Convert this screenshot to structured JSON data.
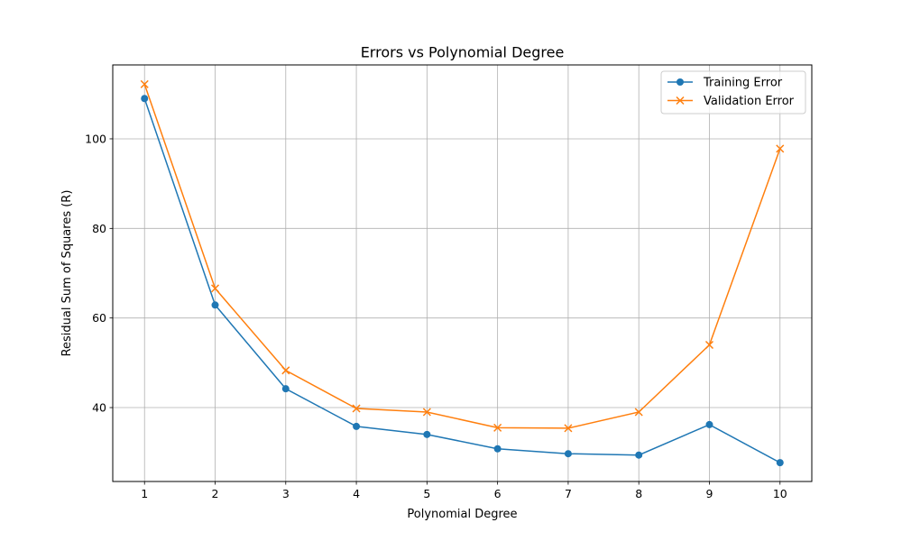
{
  "chart_data": {
    "type": "line",
    "title": "Errors vs Polynomial Degree",
    "xlabel": "Polynomial Degree",
    "ylabel": "Residual Sum of Squares (R)",
    "x": [
      1,
      2,
      3,
      4,
      5,
      6,
      7,
      8,
      9,
      10
    ],
    "xlim": [
      0.55,
      10.45
    ],
    "ylim": [
      23.5,
      116.5
    ],
    "yticks": [
      40,
      60,
      80,
      100
    ],
    "grid": true,
    "legend_position": "top-right",
    "series": [
      {
        "name": "Training Error",
        "color": "#1f77b4",
        "marker": "circle",
        "values": [
          109.0,
          62.9,
          44.2,
          35.8,
          34.0,
          30.8,
          29.7,
          29.4,
          36.2,
          27.7
        ]
      },
      {
        "name": "Validation Error",
        "color": "#ff7f0e",
        "marker": "x",
        "values": [
          112.2,
          66.6,
          48.3,
          39.8,
          39.0,
          35.5,
          35.4,
          39.0,
          54.0,
          97.8
        ]
      }
    ]
  }
}
